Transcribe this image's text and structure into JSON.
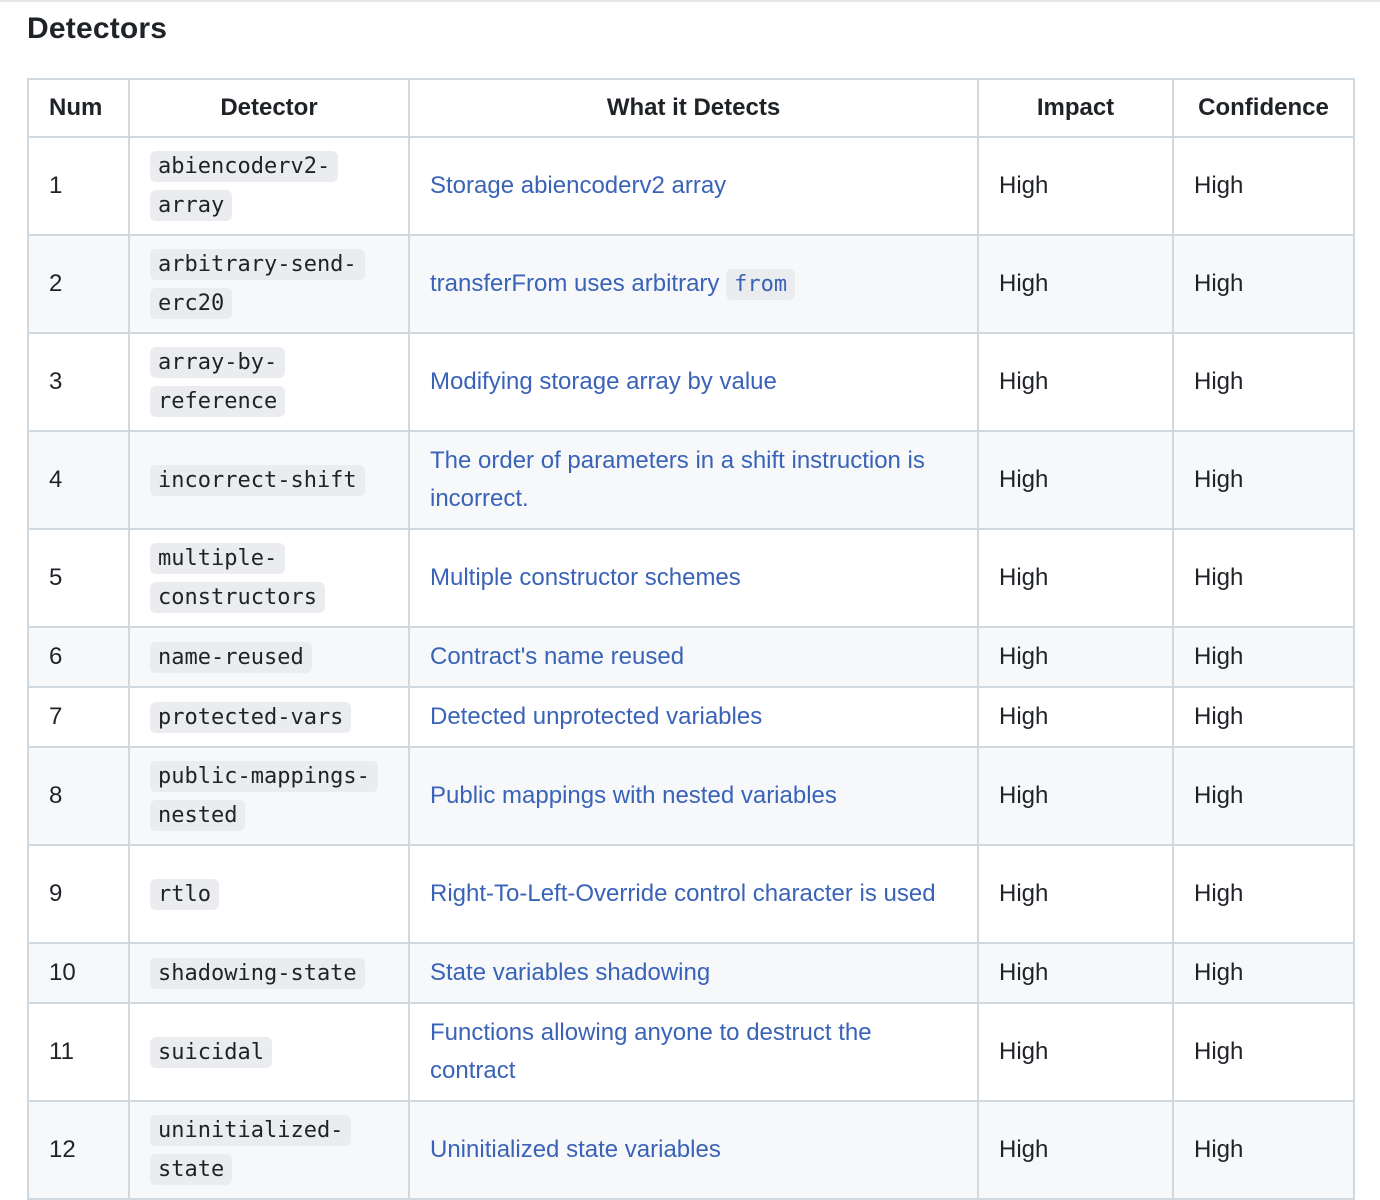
{
  "section": {
    "title": "Detectors"
  },
  "table": {
    "headers": [
      "Num",
      "Detector",
      "What it Detects",
      "Impact",
      "Confidence"
    ],
    "rows": [
      {
        "num": "1",
        "detector": "abiencoderv2-array",
        "description": "Storage abiencoderv2 array",
        "impact": "High",
        "confidence": "High"
      },
      {
        "num": "2",
        "detector": "arbitrary-send-erc20",
        "description": "transferFrom uses arbitrary",
        "description_code": "from",
        "impact": "High",
        "confidence": "High"
      },
      {
        "num": "3",
        "detector": "array-by-reference",
        "description": "Modifying storage array by value",
        "impact": "High",
        "confidence": "High"
      },
      {
        "num": "4",
        "detector": "incorrect-shift",
        "description": "The order of parameters in a shift instruction is incorrect.",
        "impact": "High",
        "confidence": "High"
      },
      {
        "num": "5",
        "detector": "multiple-constructors",
        "description": "Multiple constructor schemes",
        "impact": "High",
        "confidence": "High"
      },
      {
        "num": "6",
        "detector": "name-reused",
        "description": "Contract's name reused",
        "impact": "High",
        "confidence": "High"
      },
      {
        "num": "7",
        "detector": "protected-vars",
        "description": "Detected unprotected variables",
        "impact": "High",
        "confidence": "High"
      },
      {
        "num": "8",
        "detector": "public-mappings-nested",
        "description": "Public mappings with nested variables",
        "impact": "High",
        "confidence": "High"
      },
      {
        "num": "9",
        "detector": "rtlo",
        "description": "Right-To-Left-Override control character is used",
        "impact": "High",
        "confidence": "High"
      },
      {
        "num": "10",
        "detector": "shadowing-state",
        "description": "State variables shadowing",
        "impact": "High",
        "confidence": "High"
      },
      {
        "num": "11",
        "detector": "suicidal",
        "description": "Functions allowing anyone to destruct the contract",
        "impact": "High",
        "confidence": "High"
      },
      {
        "num": "12",
        "detector": "uninitialized-state",
        "description": "Uninitialized state variables",
        "impact": "High",
        "confidence": "High"
      }
    ]
  },
  "colors": {
    "link": "#3a63b8",
    "border": "#d1d9e0",
    "stripe": "#f6f8fa",
    "code_bg": "#eaecef"
  }
}
